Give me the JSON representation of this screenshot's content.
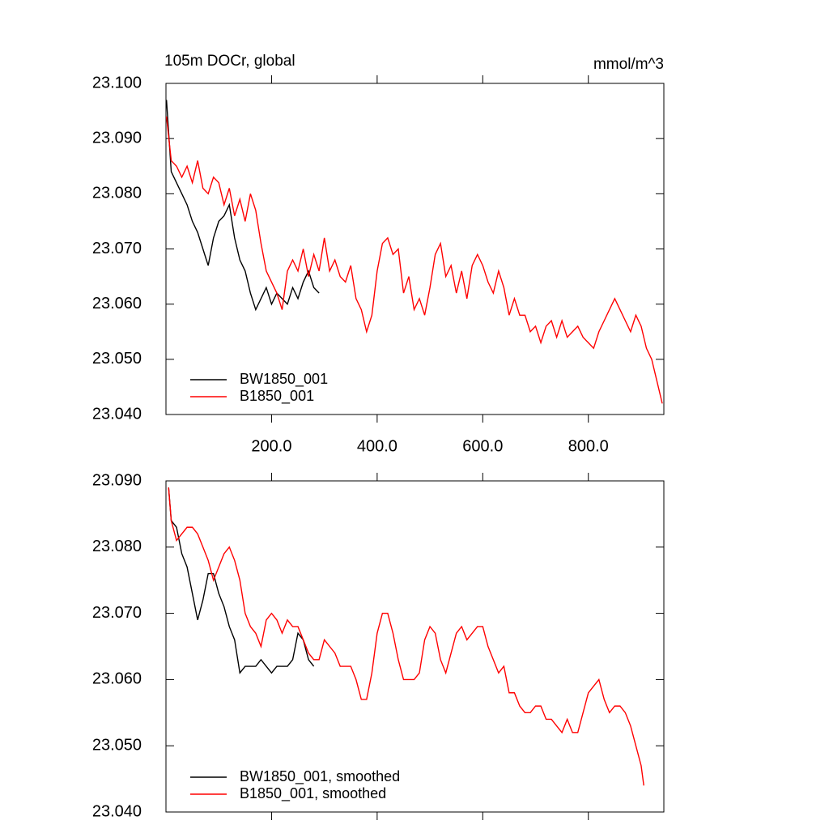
{
  "chart_data": [
    {
      "type": "line",
      "title": "105m DOCr, global",
      "units": "mmol/m^3",
      "xlim": [
        0,
        943
      ],
      "ylim": [
        23.04,
        23.1
      ],
      "xticks": [
        {
          "value": 200,
          "label": "200.0"
        },
        {
          "value": 400,
          "label": "400.0"
        },
        {
          "value": 600,
          "label": "600.0"
        },
        {
          "value": 800,
          "label": "800.0"
        }
      ],
      "yticks": [
        {
          "value": 23.04,
          "label": "23.040"
        },
        {
          "value": 23.05,
          "label": "23.050"
        },
        {
          "value": 23.06,
          "label": "23.060"
        },
        {
          "value": 23.07,
          "label": "23.070"
        },
        {
          "value": 23.08,
          "label": "23.080"
        },
        {
          "value": 23.09,
          "label": "23.090"
        },
        {
          "value": 23.1,
          "label": "23.100"
        }
      ],
      "series": [
        {
          "name": "BW1850_001",
          "color": "#000000",
          "x": [
            1,
            10,
            20,
            30,
            40,
            50,
            60,
            70,
            80,
            90,
            100,
            110,
            120,
            130,
            140,
            150,
            160,
            170,
            180,
            190,
            200,
            210,
            220,
            230,
            240,
            250,
            260,
            270,
            280,
            290
          ],
          "values": [
            23.097,
            23.084,
            23.082,
            23.08,
            23.078,
            23.075,
            23.073,
            23.07,
            23.067,
            23.072,
            23.075,
            23.076,
            23.078,
            23.072,
            23.068,
            23.066,
            23.062,
            23.059,
            23.061,
            23.063,
            23.06,
            23.062,
            23.061,
            23.06,
            23.063,
            23.061,
            23.064,
            23.066,
            23.063,
            23.062
          ]
        },
        {
          "name": "B1850_001",
          "color": "#ff0000",
          "x": [
            1,
            10,
            20,
            30,
            40,
            50,
            60,
            70,
            80,
            90,
            100,
            110,
            120,
            130,
            140,
            150,
            160,
            170,
            180,
            190,
            200,
            210,
            220,
            230,
            240,
            250,
            260,
            270,
            280,
            290,
            300,
            310,
            320,
            330,
            340,
            350,
            360,
            370,
            380,
            390,
            400,
            410,
            420,
            430,
            440,
            450,
            460,
            470,
            480,
            490,
            500,
            510,
            520,
            530,
            540,
            550,
            560,
            570,
            580,
            590,
            600,
            610,
            620,
            630,
            640,
            650,
            660,
            670,
            680,
            690,
            700,
            710,
            720,
            730,
            740,
            750,
            760,
            770,
            780,
            790,
            800,
            810,
            820,
            830,
            840,
            850,
            860,
            870,
            880,
            890,
            900,
            910,
            920,
            930,
            940
          ],
          "values": [
            23.094,
            23.086,
            23.085,
            23.083,
            23.085,
            23.082,
            23.086,
            23.081,
            23.08,
            23.083,
            23.082,
            23.078,
            23.081,
            23.076,
            23.079,
            23.075,
            23.08,
            23.077,
            23.071,
            23.066,
            23.064,
            23.062,
            23.059,
            23.066,
            23.068,
            23.066,
            23.07,
            23.065,
            23.069,
            23.066,
            23.072,
            23.066,
            23.068,
            23.065,
            23.064,
            23.067,
            23.061,
            23.059,
            23.055,
            23.058,
            23.066,
            23.071,
            23.072,
            23.069,
            23.07,
            23.062,
            23.065,
            23.059,
            23.061,
            23.058,
            23.063,
            23.069,
            23.071,
            23.065,
            23.067,
            23.062,
            23.066,
            23.061,
            23.067,
            23.069,
            23.067,
            23.064,
            23.062,
            23.066,
            23.063,
            23.058,
            23.061,
            23.058,
            23.058,
            23.055,
            23.056,
            23.053,
            23.056,
            23.057,
            23.054,
            23.057,
            23.054,
            23.055,
            23.056,
            23.054,
            23.053,
            23.052,
            23.055,
            23.057,
            23.059,
            23.061,
            23.059,
            23.057,
            23.055,
            23.058,
            23.056,
            23.052,
            23.05,
            23.046,
            23.042
          ]
        }
      ]
    },
    {
      "type": "line",
      "xlim": [
        0,
        943
      ],
      "ylim": [
        23.04,
        23.09
      ],
      "xticks": [
        200,
        400,
        600,
        800
      ],
      "yticks": [
        {
          "value": 23.04,
          "label": "23.040"
        },
        {
          "value": 23.05,
          "label": "23.050"
        },
        {
          "value": 23.06,
          "label": "23.060"
        },
        {
          "value": 23.07,
          "label": "23.070"
        },
        {
          "value": 23.08,
          "label": "23.080"
        },
        {
          "value": 23.09,
          "label": "23.090"
        }
      ],
      "series": [
        {
          "name": "BW1850_001, smoothed",
          "color": "#000000",
          "x": [
            5,
            10,
            20,
            30,
            40,
            50,
            60,
            70,
            80,
            90,
            100,
            110,
            120,
            130,
            140,
            150,
            160,
            170,
            180,
            190,
            200,
            210,
            220,
            230,
            240,
            250,
            260,
            270,
            280
          ],
          "values": [
            23.089,
            23.084,
            23.083,
            23.079,
            23.077,
            23.073,
            23.069,
            23.072,
            23.076,
            23.076,
            23.073,
            23.071,
            23.068,
            23.066,
            23.061,
            23.062,
            23.062,
            23.062,
            23.063,
            23.062,
            23.061,
            23.062,
            23.062,
            23.062,
            23.063,
            23.067,
            23.066,
            23.063,
            23.062
          ]
        },
        {
          "name": "B1850_001, smoothed",
          "color": "#ff0000",
          "x": [
            5,
            10,
            20,
            30,
            40,
            50,
            60,
            70,
            80,
            90,
            100,
            110,
            120,
            130,
            140,
            150,
            160,
            170,
            180,
            190,
            200,
            210,
            220,
            230,
            240,
            250,
            260,
            270,
            280,
            290,
            300,
            310,
            320,
            330,
            340,
            350,
            360,
            370,
            380,
            390,
            400,
            410,
            420,
            430,
            440,
            450,
            460,
            470,
            480,
            490,
            500,
            510,
            520,
            530,
            540,
            550,
            560,
            570,
            580,
            590,
            600,
            610,
            620,
            630,
            640,
            650,
            660,
            670,
            680,
            690,
            700,
            710,
            720,
            730,
            740,
            750,
            760,
            770,
            780,
            790,
            800,
            810,
            820,
            830,
            840,
            850,
            860,
            870,
            880,
            890,
            900,
            905
          ],
          "values": [
            23.089,
            23.084,
            23.081,
            23.082,
            23.083,
            23.083,
            23.082,
            23.08,
            23.078,
            23.075,
            23.077,
            23.079,
            23.08,
            23.078,
            23.075,
            23.07,
            23.068,
            23.067,
            23.065,
            23.069,
            23.07,
            23.069,
            23.067,
            23.069,
            23.068,
            23.068,
            23.066,
            23.064,
            23.063,
            23.063,
            23.066,
            23.065,
            23.064,
            23.062,
            23.062,
            23.062,
            23.06,
            23.057,
            23.057,
            23.061,
            23.067,
            23.07,
            23.07,
            23.067,
            23.063,
            23.06,
            23.06,
            23.06,
            23.061,
            23.066,
            23.068,
            23.067,
            23.063,
            23.061,
            23.064,
            23.067,
            23.068,
            23.066,
            23.067,
            23.068,
            23.068,
            23.065,
            23.063,
            23.061,
            23.062,
            23.058,
            23.058,
            23.056,
            23.055,
            23.055,
            23.056,
            23.056,
            23.054,
            23.054,
            23.053,
            23.052,
            23.054,
            23.052,
            23.052,
            23.055,
            23.058,
            23.059,
            23.06,
            23.057,
            23.055,
            23.056,
            23.056,
            23.055,
            23.053,
            23.05,
            23.047,
            23.044
          ]
        }
      ]
    }
  ]
}
